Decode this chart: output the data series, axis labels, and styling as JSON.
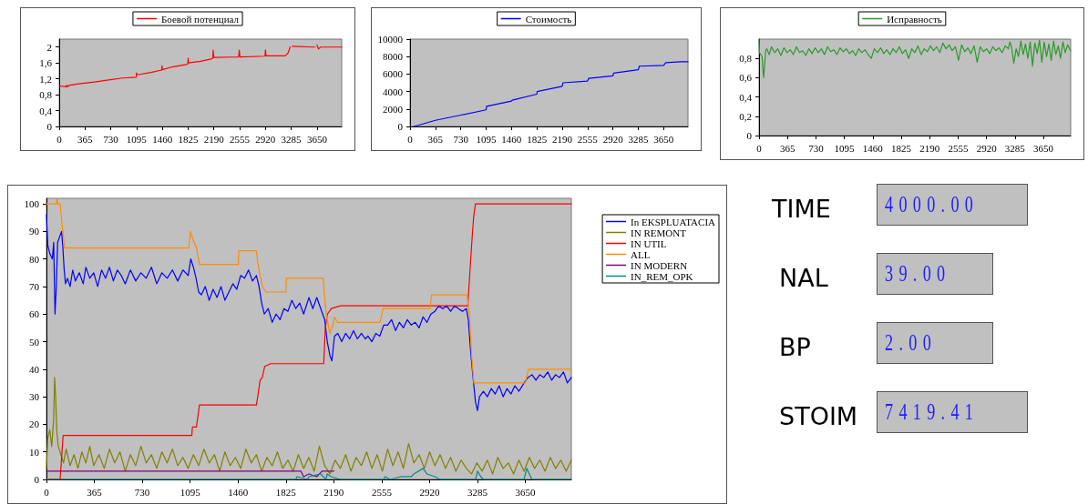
{
  "chart_data": [
    {
      "type": "line",
      "legend": "top",
      "grid": false,
      "marker": "none",
      "line_style": "solid",
      "xlim": [
        0,
        4000
      ],
      "xticks": [
        0,
        365,
        730,
        1095,
        1460,
        1825,
        2190,
        2555,
        2920,
        3285,
        3650
      ],
      "ylim": [
        0,
        2.2
      ],
      "yticks": [
        0,
        {
          "value": 0.4,
          "label": "0,4"
        },
        {
          "value": 0.8,
          "label": "0,8"
        },
        {
          "value": 1.2,
          "label": "1,2"
        },
        {
          "value": 1.6,
          "label": "1,6"
        },
        2
      ],
      "series": [
        {
          "name": "Боевой потенциал",
          "color": "#ff0000",
          "x": [
            5,
            100,
            105,
            110,
            150,
            300,
            500,
            700,
            900,
            1090,
            1095,
            1100,
            1300,
            1450,
            1455,
            1460,
            1600,
            1800,
            1820,
            1825,
            1830,
            2000,
            2150,
            2175,
            2180,
            2190,
            2200,
            2540,
            2550,
            2560,
            2900,
            2915,
            2920,
            2930,
            3200,
            3240,
            3270,
            3285,
            3300,
            3600,
            3625,
            3630,
            3650,
            3670,
            3700,
            4000
          ],
          "values": [
            1.02,
            1.0,
            1.04,
            1.0,
            1.04,
            1.08,
            1.12,
            1.17,
            1.22,
            1.24,
            1.35,
            1.3,
            1.36,
            1.42,
            1.53,
            1.43,
            1.5,
            1.56,
            1.57,
            1.72,
            1.6,
            1.64,
            1.7,
            1.72,
            1.92,
            1.74,
            1.74,
            1.75,
            1.92,
            1.75,
            1.77,
            1.78,
            1.93,
            1.78,
            1.78,
            1.85,
            2.0,
            null,
            2.02,
            2.0,
            2.0,
            null,
            2.05,
            1.95,
            2.0,
            2.0
          ]
        }
      ]
    },
    {
      "type": "line",
      "legend": "top",
      "grid": false,
      "marker": "none",
      "line_style": "solid",
      "xlim": [
        0,
        4000
      ],
      "xticks": [
        0,
        365,
        730,
        1095,
        1460,
        1825,
        2190,
        2555,
        2920,
        3285,
        3650
      ],
      "ylim": [
        0,
        10000
      ],
      "yticks": [
        0,
        2000,
        4000,
        6000,
        8000,
        10000
      ],
      "series": [
        {
          "name": "Стоимость",
          "color": "#0000ff",
          "x": [
            60,
            365,
            730,
            1095,
            1100,
            1460,
            1470,
            1825,
            1830,
            2190,
            2200,
            2555,
            2570,
            2920,
            2930,
            3285,
            3300,
            3650,
            3680,
            3900,
            4000
          ],
          "values": [
            0,
            700,
            1300,
            1900,
            2300,
            2900,
            3000,
            3700,
            4000,
            4600,
            5000,
            5200,
            5500,
            5800,
            6100,
            6500,
            6900,
            7000,
            7300,
            7400,
            7400
          ]
        }
      ]
    },
    {
      "type": "line",
      "legend": "top",
      "grid": false,
      "marker": "none",
      "line_style": "solid",
      "xlim": [
        0,
        4000
      ],
      "xticks": [
        0,
        365,
        730,
        1095,
        1460,
        1825,
        2190,
        2555,
        2920,
        3285,
        3650
      ],
      "ylim": [
        0,
        1
      ],
      "yticks": [
        0,
        {
          "value": 0.2,
          "label": "0,2"
        },
        {
          "value": 0.4,
          "label": "0,4"
        },
        {
          "value": 0.6,
          "label": "0,6"
        },
        {
          "value": 0.8,
          "label": "0,8"
        }
      ],
      "series": [
        {
          "name": "Исправность",
          "color": "#2a9a2a",
          "x": [
            0,
            5,
            20,
            40,
            50,
            60,
            70,
            85,
            100,
            130,
            160,
            200,
            240,
            280,
            320,
            360,
            400,
            440,
            480,
            520,
            560,
            600,
            640,
            680,
            720,
            760,
            800,
            840,
            880,
            920,
            960,
            1000,
            1040,
            1080,
            1120,
            1160,
            1200,
            1240,
            1280,
            1320,
            1360,
            1400,
            1440,
            1480,
            1520,
            1560,
            1600,
            1640,
            1680,
            1720,
            1760,
            1800,
            1840,
            1880,
            1920,
            1960,
            2000,
            2040,
            2080,
            2120,
            2160,
            2200,
            2240,
            2280,
            2320,
            2360,
            2400,
            2440,
            2480,
            2520,
            2560,
            2600,
            2640,
            2680,
            2720,
            2760,
            2800,
            2840,
            2880,
            2920,
            2960,
            3000,
            3040,
            3080,
            3120,
            3160,
            3200,
            3220,
            3240,
            3270,
            3300,
            3330,
            3360,
            3390,
            3420,
            3450,
            3480,
            3510,
            3540,
            3570,
            3600,
            3630,
            3660,
            3690,
            3720,
            3750,
            3780,
            3810,
            3840,
            3870,
            3900,
            3930,
            3960,
            4000
          ],
          "values": [
            1.0,
            0.86,
            0.84,
            0.82,
            0.68,
            0.6,
            0.72,
            0.88,
            0.9,
            0.84,
            0.92,
            0.86,
            0.9,
            0.83,
            0.91,
            0.86,
            0.89,
            0.84,
            0.92,
            0.86,
            0.88,
            0.83,
            0.9,
            0.85,
            0.91,
            0.86,
            0.9,
            0.84,
            0.92,
            0.87,
            0.89,
            0.84,
            0.91,
            0.87,
            0.9,
            0.85,
            0.88,
            0.83,
            0.9,
            0.86,
            0.89,
            0.84,
            0.8,
            0.9,
            0.86,
            0.91,
            0.85,
            0.89,
            0.84,
            0.9,
            0.86,
            0.92,
            0.85,
            0.89,
            0.8,
            0.9,
            0.86,
            0.93,
            0.84,
            0.9,
            0.87,
            0.93,
            0.88,
            0.92,
            0.86,
            0.96,
            0.9,
            0.94,
            0.88,
            0.92,
            0.78,
            0.94,
            0.87,
            0.91,
            0.85,
            0.93,
            0.76,
            0.92,
            0.87,
            0.9,
            0.85,
            0.92,
            0.88,
            0.91,
            0.86,
            0.93,
            0.9,
            0.97,
            0.92,
            0.75,
            0.9,
            0.82,
            0.98,
            0.84,
            0.95,
            0.8,
            0.97,
            0.72,
            0.96,
            0.85,
            0.99,
            0.76,
            0.97,
            0.82,
            0.95,
            0.78,
            0.98,
            0.84,
            0.93,
            0.8,
            0.97,
            0.86,
            0.94,
            0.88
          ]
        }
      ]
    },
    {
      "type": "line",
      "legend": "top right",
      "grid": false,
      "marker": "none",
      "line_style": "solid",
      "xlim": [
        0,
        4000
      ],
      "xticks": [
        0,
        365,
        730,
        1095,
        1460,
        1825,
        2190,
        2555,
        2920,
        3285,
        3650
      ],
      "ylim": [
        0,
        102
      ],
      "yticks": [
        0,
        10,
        20,
        30,
        40,
        50,
        60,
        70,
        80,
        90,
        100
      ],
      "series": [
        {
          "name": "In EKSPLUATACIA",
          "color": "#0000ff",
          "x": [
            0,
            10,
            25,
            45,
            55,
            65,
            75,
            85,
            100,
            115,
            125,
            135,
            145,
            160,
            180,
            200,
            220,
            250,
            280,
            300,
            330,
            360,
            390,
            420,
            450,
            480,
            510,
            540,
            570,
            600,
            640,
            680,
            720,
            760,
            800,
            840,
            880,
            920,
            960,
            1000,
            1040,
            1080,
            1100,
            1120,
            1140,
            1160,
            1180,
            1210,
            1240,
            1270,
            1300,
            1330,
            1360,
            1390,
            1420,
            1450,
            1480,
            1510,
            1540,
            1570,
            1600,
            1620,
            1640,
            1660,
            1690,
            1720,
            1750,
            1780,
            1810,
            1840,
            1870,
            1900,
            1930,
            1960,
            2000,
            2030,
            2060,
            2090,
            2120,
            2140,
            2160,
            2175,
            2195,
            2220,
            2250,
            2280,
            2310,
            2340,
            2370,
            2400,
            2430,
            2450,
            2480,
            2510,
            2540,
            2570,
            2600,
            2630,
            2660,
            2690,
            2720,
            2750,
            2780,
            2810,
            2840,
            2870,
            2900,
            2930,
            2960,
            2990,
            3020,
            3050,
            3080,
            3110,
            3140,
            3170,
            3200,
            3215,
            3230,
            3245,
            3255,
            3270,
            3285,
            3300,
            3330,
            3360,
            3390,
            3420,
            3450,
            3480,
            3510,
            3540,
            3570,
            3600,
            3640,
            3670,
            3700,
            3730,
            3760,
            3790,
            3820,
            3850,
            3880,
            3910,
            3940,
            3970,
            4000
          ],
          "values": [
            96,
            85,
            82,
            80,
            86,
            60,
            70,
            86,
            88,
            90,
            84,
            76,
            71,
            73,
            70,
            76,
            72,
            75,
            71,
            77,
            73,
            75,
            70,
            76,
            73,
            77,
            72,
            76,
            74,
            71,
            76,
            72,
            75,
            73,
            77,
            71,
            75,
            73,
            76,
            72,
            76,
            74,
            80,
            77,
            73,
            68,
            67,
            70,
            65,
            69,
            66,
            70,
            65,
            68,
            71,
            69,
            74,
            73,
            76,
            72,
            74,
            70,
            64,
            60,
            62,
            57,
            60,
            58,
            62,
            61,
            65,
            62,
            64,
            60,
            66,
            62,
            66,
            62,
            58,
            50,
            45,
            43,
            52,
            53,
            50,
            53,
            51,
            54,
            51,
            53,
            51,
            52,
            50,
            53,
            52,
            56,
            56,
            58,
            54,
            57,
            55,
            58,
            56,
            57,
            55,
            59,
            57,
            60,
            61,
            63,
            62,
            63,
            61,
            63,
            62,
            61,
            62,
            58,
            48,
            40,
            35,
            28,
            25,
            30,
            32,
            30,
            33,
            31,
            34,
            30,
            33,
            31,
            34,
            32,
            35,
            37,
            38,
            36,
            38,
            37,
            39,
            36,
            38,
            37,
            39,
            35,
            37
          ]
        },
        {
          "name": "IN REMONT",
          "color": "#808000",
          "x": [
            0,
            10,
            25,
            40,
            55,
            62,
            70,
            78,
            90,
            110,
            130,
            150,
            180,
            210,
            240,
            270,
            300,
            330,
            360,
            400,
            440,
            480,
            520,
            560,
            600,
            640,
            680,
            720,
            760,
            800,
            840,
            880,
            920,
            960,
            1000,
            1040,
            1080,
            1120,
            1160,
            1200,
            1240,
            1280,
            1320,
            1360,
            1400,
            1440,
            1480,
            1520,
            1560,
            1600,
            1640,
            1680,
            1720,
            1760,
            1800,
            1840,
            1880,
            1920,
            1960,
            2000,
            2040,
            2080,
            2120,
            2160,
            2200,
            2240,
            2280,
            2320,
            2360,
            2400,
            2440,
            2480,
            2520,
            2560,
            2600,
            2640,
            2680,
            2720,
            2760,
            2800,
            2840,
            2880,
            2920,
            2960,
            3000,
            3040,
            3080,
            3120,
            3160,
            3200,
            3240,
            3280,
            3320,
            3360,
            3400,
            3440,
            3480,
            3520,
            3560,
            3600,
            3640,
            3680,
            3720,
            3760,
            3800,
            3840,
            3880,
            3920,
            3960,
            4000
          ],
          "values": [
            4,
            15,
            18,
            12,
            22,
            37,
            30,
            18,
            12,
            9,
            6,
            11,
            5,
            9,
            4,
            10,
            6,
            12,
            5,
            9,
            4,
            11,
            6,
            10,
            3,
            9,
            5,
            12,
            6,
            9,
            4,
            10,
            6,
            11,
            5,
            8,
            4,
            9,
            5,
            11,
            6,
            9,
            3,
            10,
            5,
            8,
            4,
            11,
            6,
            9,
            3,
            8,
            5,
            10,
            4,
            7,
            3,
            9,
            4,
            8,
            3,
            12,
            5,
            2,
            7,
            4,
            9,
            3,
            8,
            5,
            10,
            4,
            9,
            3,
            11,
            5,
            10,
            4,
            13,
            6,
            9,
            4,
            10,
            5,
            9,
            4,
            8,
            3,
            7,
            4,
            2,
            6,
            3,
            7,
            2,
            8,
            4,
            6,
            2,
            7,
            3,
            8,
            4,
            7,
            3,
            8,
            4,
            7,
            3,
            7
          ]
        },
        {
          "name": "IN UTIL",
          "color": "#ff0000",
          "x": [
            0,
            104,
            127,
            1108,
            1112,
            1143,
            1166,
            1600,
            1610,
            1628,
            1645,
            1663,
            1709,
            2113,
            2125,
            2141,
            2171,
            2240,
            3211,
            3220,
            3240,
            3255,
            3269,
            4000
          ],
          "values": [
            0,
            0,
            16,
            16,
            19,
            19,
            27,
            27,
            30,
            36,
            37,
            41,
            42,
            42,
            55,
            60,
            62,
            63,
            63,
            70,
            85,
            95,
            100,
            100
          ]
        },
        {
          "name": "ALL",
          "color": "#ff8c00",
          "x": [
            0,
            75,
            80,
            85,
            104,
            120,
            139,
            1085,
            1097,
            1110,
            1125,
            1143,
            1166,
            1462,
            1466,
            1600,
            1610,
            1624,
            1645,
            1674,
            1824,
            1829,
            2109,
            2120,
            2132,
            2159,
            2182,
            2194,
            2217,
            2542,
            2565,
            2923,
            2935,
            3205,
            3223,
            3240,
            3257,
            3650,
            3673,
            4000
          ],
          "values": [
            100,
            100,
            102,
            100,
            100,
            92,
            84,
            84,
            90,
            88,
            86,
            84,
            78,
            78,
            83,
            83,
            79,
            75,
            70,
            68,
            68,
            73,
            73,
            66,
            60,
            53,
            56,
            59,
            57,
            57,
            62,
            62,
            67,
            67,
            60,
            45,
            35,
            35,
            40,
            40
          ]
        },
        {
          "name": "IN MODERN",
          "color": "#800080",
          "x": [
            0,
            1940,
            1960,
            2000,
            2060,
            2100,
            2190
          ],
          "values": [
            3,
            3,
            1,
            2,
            1,
            3,
            3
          ]
        },
        {
          "name": "IN_REM_OPK",
          "color": "#008b8b",
          "x": [
            0,
            1900,
            1910,
            1990,
            2000,
            2090,
            2130,
            2140,
            2170,
            2240,
            2570,
            2580,
            2620,
            2700,
            2780,
            2800,
            2870,
            2900,
            2960,
            3000,
            3270,
            3285,
            3310,
            3330,
            3640,
            3660,
            3690,
            3700,
            4000
          ],
          "values": [
            0,
            0,
            1,
            0,
            1,
            2,
            0,
            2,
            1,
            0,
            0,
            1,
            0,
            1,
            1,
            2,
            4,
            2,
            1,
            0,
            0,
            3,
            1,
            0,
            0,
            4,
            1,
            0,
            0
          ]
        }
      ]
    },
    {
      "type": "other",
      "annotations": [
        "TIME",
        "4000.00",
        "NAL",
        "39.00",
        "BP",
        "2.00",
        "STOIM",
        "7419.41"
      ]
    }
  ]
}
